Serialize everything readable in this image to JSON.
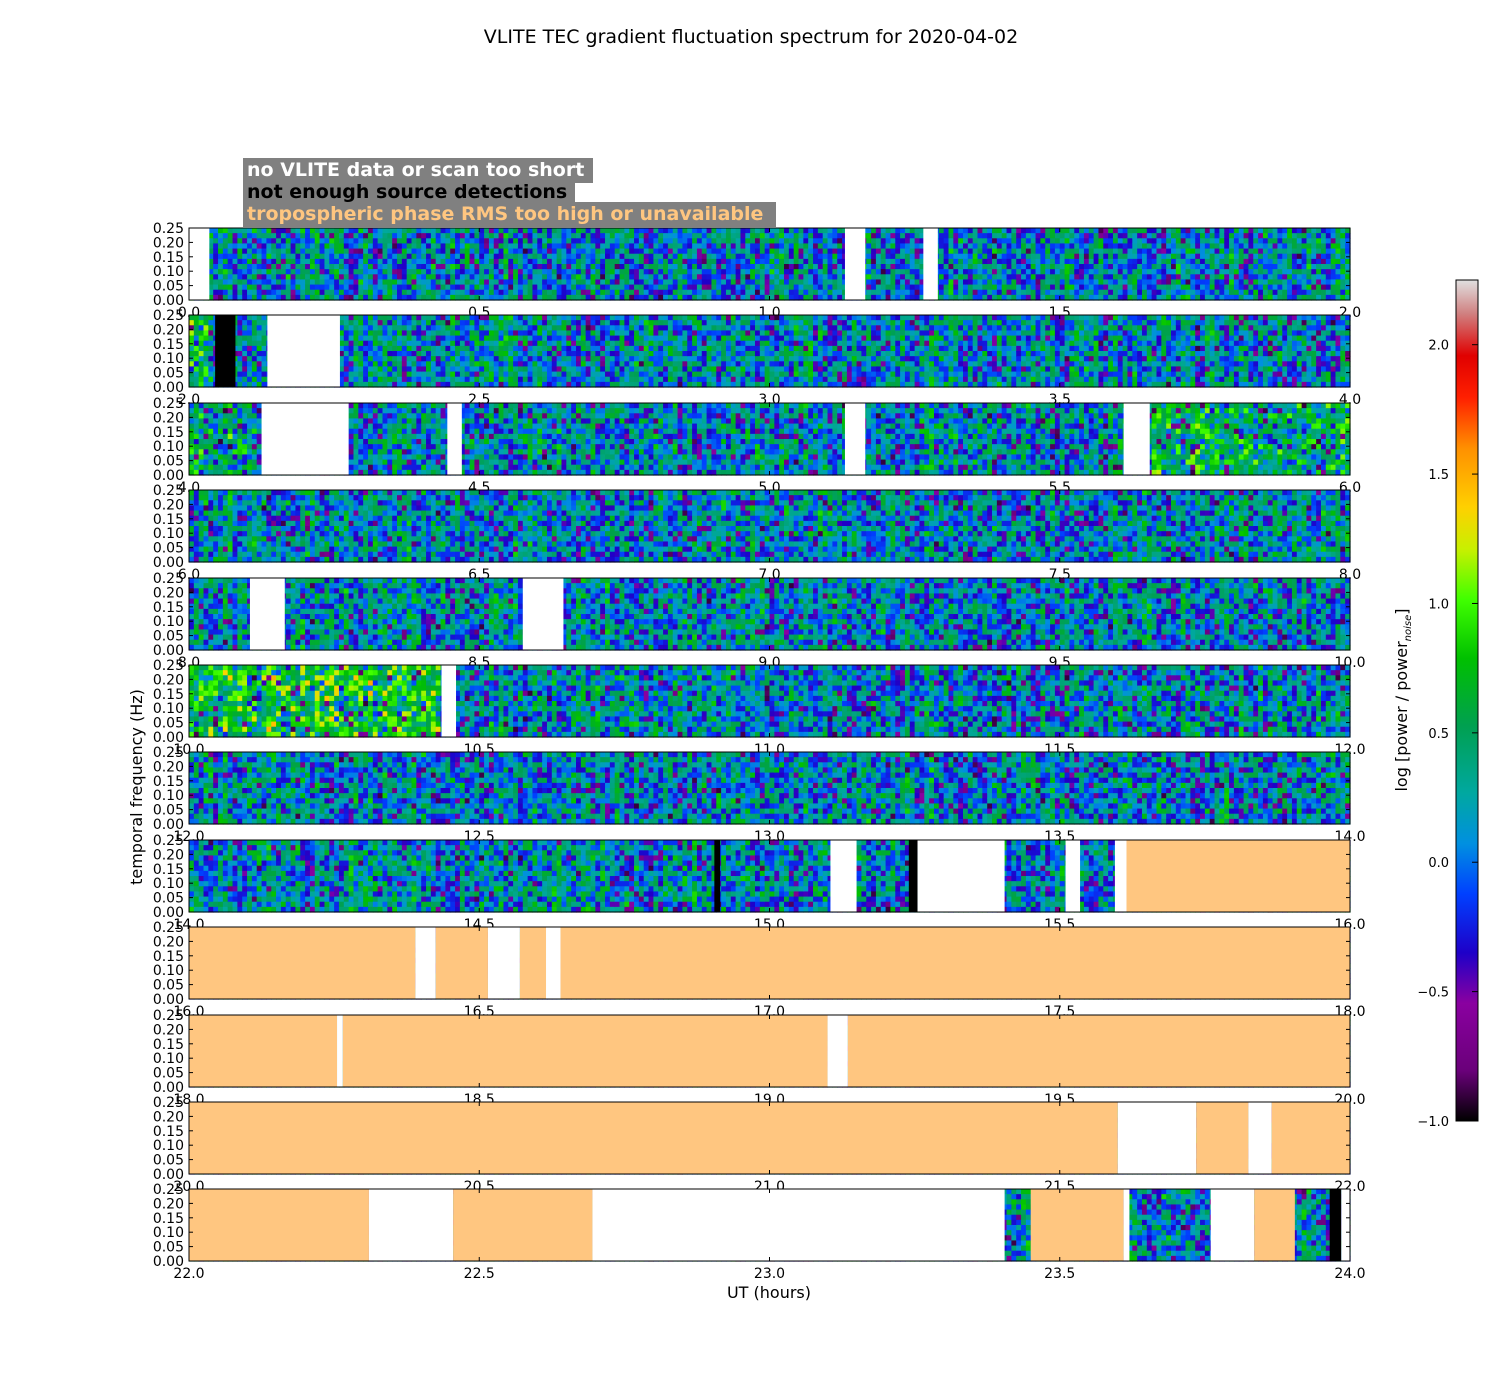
{
  "chart_data": {
    "type": "heatmap",
    "title": "VLITE TEC gradient fluctuation spectrum for 2020-04-02",
    "xlabel": "UT (hours)",
    "ylabel": "temporal frequency (Hz)",
    "ylim": [
      0,
      0.25
    ],
    "yticks": [
      "0.25",
      "0.20",
      "0.15",
      "0.10",
      "0.05",
      "0.00"
    ],
    "yticks_values": [
      0.25,
      0.2,
      0.15,
      0.1,
      0.05,
      0.0
    ],
    "colorbar": {
      "label": "log [power / power",
      "label_sub": "noise",
      "label_close": "]",
      "range": [
        -1.0,
        2.25
      ],
      "ticks": [
        {
          "label": "−1.0",
          "value": -1.0
        },
        {
          "label": "−0.5",
          "value": -0.5
        },
        {
          "label": "0.0",
          "value": 0.0
        },
        {
          "label": "0.5",
          "value": 0.5
        },
        {
          "label": "1.0",
          "value": 1.0
        },
        {
          "label": "1.5",
          "value": 1.5
        },
        {
          "label": "2.0",
          "value": 2.0
        }
      ]
    },
    "legend": {
      "placement": "top-left",
      "entries": [
        {
          "text": "no VLITE data or scan too short",
          "color": "#ffffff"
        },
        {
          "text": "not enough source detections",
          "color": "#000000"
        },
        {
          "text": "tropospheric phase RMS too high or unavailable",
          "color": "#ffc680"
        }
      ],
      "background": "#808080"
    },
    "colors": {
      "nodata": "#ffffff",
      "few_detections": "#000000",
      "troposphere": "#ffc680"
    },
    "panels": [
      {
        "start": 0,
        "end": 2,
        "ticks": [
          "0.0",
          "0.5",
          "1.0",
          "1.5",
          "2.0"
        ],
        "segments": [
          {
            "kind": "nodata",
            "from": 0.0,
            "to": 0.035
          },
          {
            "kind": "nodata",
            "from": 1.13,
            "to": 1.165
          },
          {
            "kind": "nodata",
            "from": 1.265,
            "to": 1.29
          }
        ],
        "hot": []
      },
      {
        "start": 2,
        "end": 4,
        "ticks": [
          "2.0",
          "2.5",
          "3.0",
          "3.5",
          "4.0"
        ],
        "segments": [
          {
            "kind": "few",
            "from": 2.045,
            "to": 2.08
          },
          {
            "kind": "nodata",
            "from": 2.135,
            "to": 2.26
          }
        ],
        "hot": [
          {
            "from": 2.0,
            "to": 2.04,
            "level": 0.6
          }
        ]
      },
      {
        "start": 4,
        "end": 6,
        "ticks": [
          "4.0",
          "4.5",
          "5.0",
          "5.5",
          "6.0"
        ],
        "segments": [
          {
            "kind": "nodata",
            "from": 4.125,
            "to": 4.275
          },
          {
            "kind": "nodata",
            "from": 4.445,
            "to": 4.47
          },
          {
            "kind": "nodata",
            "from": 5.13,
            "to": 5.165
          },
          {
            "kind": "nodata",
            "from": 5.61,
            "to": 5.655
          }
        ],
        "hot": [
          {
            "from": 5.66,
            "to": 6.0,
            "level": 0.5
          },
          {
            "from": 4.0,
            "to": 4.12,
            "level": 0.4
          }
        ]
      },
      {
        "start": 6,
        "end": 8,
        "ticks": [
          "6.0",
          "6.5",
          "7.0",
          "7.5",
          "8.0"
        ],
        "segments": [],
        "hot": []
      },
      {
        "start": 8,
        "end": 10,
        "ticks": [
          "8.0",
          "8.5",
          "9.0",
          "9.5",
          "10.0"
        ],
        "segments": [
          {
            "kind": "nodata",
            "from": 8.105,
            "to": 8.165
          },
          {
            "kind": "nodata",
            "from": 8.575,
            "to": 8.645
          }
        ],
        "hot": []
      },
      {
        "start": 10,
        "end": 12,
        "ticks": [
          "10.0",
          "10.5",
          "11.0",
          "11.5",
          "12.0"
        ],
        "segments": [
          {
            "kind": "nodata",
            "from": 10.435,
            "to": 10.46
          }
        ],
        "hot": [
          {
            "from": 10.0,
            "to": 10.43,
            "level": 0.8
          }
        ]
      },
      {
        "start": 12,
        "end": 14,
        "ticks": [
          "12.0",
          "12.5",
          "13.0",
          "13.5",
          "14.0"
        ],
        "segments": [],
        "hot": []
      },
      {
        "start": 14,
        "end": 16,
        "ticks": [
          "14.0",
          "14.5",
          "15.0",
          "15.5",
          "16.0"
        ],
        "segments": [
          {
            "kind": "few",
            "from": 14.905,
            "to": 14.915
          },
          {
            "kind": "nodata",
            "from": 15.105,
            "to": 15.15
          },
          {
            "kind": "few",
            "from": 15.24,
            "to": 15.255
          },
          {
            "kind": "nodata",
            "from": 15.255,
            "to": 15.405
          },
          {
            "kind": "nodata",
            "from": 15.51,
            "to": 15.535
          },
          {
            "kind": "nodata",
            "from": 15.595,
            "to": 15.615
          },
          {
            "kind": "tropo",
            "from": 15.615,
            "to": 16.0
          }
        ],
        "hot": []
      },
      {
        "start": 16,
        "end": 18,
        "ticks": [
          "16.0",
          "16.5",
          "17.0",
          "17.5",
          "18.0"
        ],
        "segments": [
          {
            "kind": "tropo",
            "from": 16.0,
            "to": 16.39
          },
          {
            "kind": "nodata",
            "from": 16.39,
            "to": 16.425
          },
          {
            "kind": "tropo",
            "from": 16.425,
            "to": 16.515
          },
          {
            "kind": "nodata",
            "from": 16.515,
            "to": 16.57
          },
          {
            "kind": "tropo",
            "from": 16.57,
            "to": 16.615
          },
          {
            "kind": "nodata",
            "from": 16.615,
            "to": 16.64
          },
          {
            "kind": "tropo",
            "from": 16.64,
            "to": 18.0
          }
        ],
        "hot": []
      },
      {
        "start": 18,
        "end": 20,
        "ticks": [
          "18.0",
          "18.5",
          "19.0",
          "19.5",
          "20.0"
        ],
        "segments": [
          {
            "kind": "tropo",
            "from": 18.0,
            "to": 18.255
          },
          {
            "kind": "nodata",
            "from": 18.255,
            "to": 18.265
          },
          {
            "kind": "tropo",
            "from": 18.265,
            "to": 19.1
          },
          {
            "kind": "nodata",
            "from": 19.1,
            "to": 19.135
          },
          {
            "kind": "tropo",
            "from": 19.135,
            "to": 20.0
          }
        ],
        "hot": []
      },
      {
        "start": 20,
        "end": 22,
        "ticks": [
          "20.0",
          "20.5",
          "21.0",
          "21.5",
          "22.0"
        ],
        "segments": [
          {
            "kind": "tropo",
            "from": 20.0,
            "to": 21.6
          },
          {
            "kind": "nodata",
            "from": 21.6,
            "to": 21.735
          },
          {
            "kind": "tropo",
            "from": 21.735,
            "to": 21.825
          },
          {
            "kind": "nodata",
            "from": 21.825,
            "to": 21.865
          },
          {
            "kind": "tropo",
            "from": 21.865,
            "to": 22.0
          }
        ],
        "hot": []
      },
      {
        "start": 22,
        "end": 24,
        "ticks": [
          "22.0",
          "22.5",
          "23.0",
          "23.5",
          "24.0"
        ],
        "segments": [
          {
            "kind": "tropo",
            "from": 22.0,
            "to": 22.31
          },
          {
            "kind": "nodata",
            "from": 22.31,
            "to": 22.455
          },
          {
            "kind": "tropo",
            "from": 22.455,
            "to": 22.695
          },
          {
            "kind": "nodata",
            "from": 22.695,
            "to": 23.405
          },
          {
            "kind": "tropo",
            "from": 23.45,
            "to": 23.61
          },
          {
            "kind": "nodata",
            "from": 23.61,
            "to": 23.62
          },
          {
            "kind": "nodata",
            "from": 23.76,
            "to": 23.835
          },
          {
            "kind": "tropo",
            "from": 23.835,
            "to": 23.905
          },
          {
            "kind": "few",
            "from": 23.965,
            "to": 23.985
          },
          {
            "kind": "nodata",
            "from": 23.985,
            "to": 24.0
          }
        ],
        "hot": []
      }
    ]
  }
}
